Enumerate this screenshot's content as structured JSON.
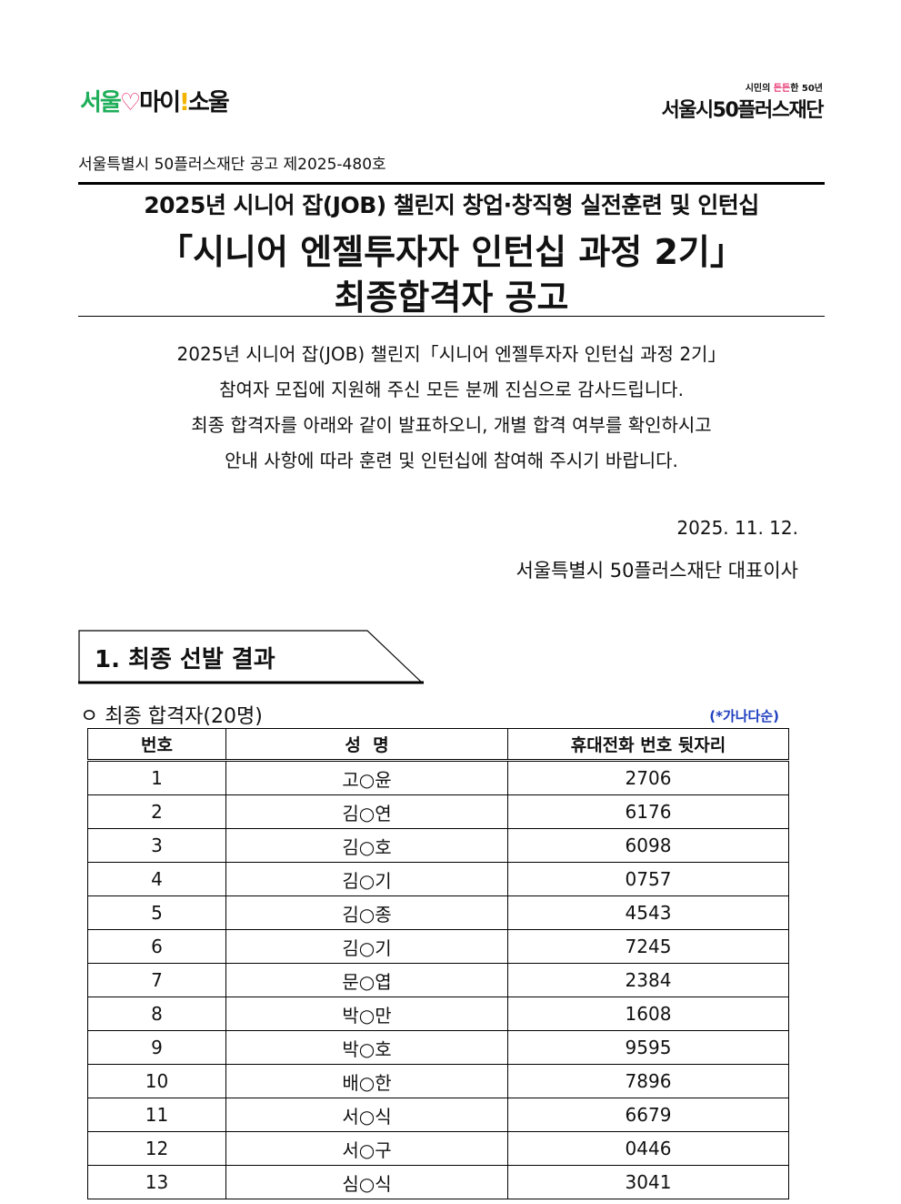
{
  "header": {
    "logo_left": [
      "서울",
      "♡",
      "마이",
      "!",
      "소울"
    ],
    "logo_right_tag": [
      "시민의 ",
      "든든",
      "한 50년"
    ],
    "logo_right_name": "서울시50플러스재단"
  },
  "notice_number": "서울특별시 50플러스재단 공고 제2025-480호",
  "title": {
    "line1": "2025년 시니어 잡(JOB) 챌린지 창업·창직형 실전훈련 및 인턴십",
    "line2": "「시니어 엔젤투자자 인턴십 과정 2기」",
    "line3": "최종합격자 공고"
  },
  "body": [
    "2025년 시니어 잡(JOB) 챌린지「시니어 엔젤투자자 인턴십 과정 2기」",
    "참여자 모집에 지원해 주신 모든 분께 진심으로 감사드립니다.",
    "최종 합격자를 아래와 같이 발표하오니, 개별 합격 여부를 확인하시고",
    "안내 사항에 따라 훈련 및 인턴십에 참여해 주시기 바랍니다."
  ],
  "date": "2025. 11. 12.",
  "signer": "서울특별시 50플러스재단 대표이사",
  "section": {
    "title": "1. 최종 선발 결과",
    "subheading": "ㅇ 최종 합격자(20명)",
    "order_note": "(*가나다순)"
  },
  "table": {
    "headers": [
      "번호",
      "성  명",
      "휴대전화 번호 뒷자리"
    ],
    "rows": [
      [
        "1",
        "고○윤",
        "2706"
      ],
      [
        "2",
        "김○연",
        "6176"
      ],
      [
        "3",
        "김○호",
        "6098"
      ],
      [
        "4",
        "김○기",
        "0757"
      ],
      [
        "5",
        "김○종",
        "4543"
      ],
      [
        "6",
        "김○기",
        "7245"
      ],
      [
        "7",
        "문○엽",
        "2384"
      ],
      [
        "8",
        "박○만",
        "1608"
      ],
      [
        "9",
        "박○호",
        "9595"
      ],
      [
        "10",
        "배○한",
        "7896"
      ],
      [
        "11",
        "서○식",
        "6679"
      ],
      [
        "12",
        "서○구",
        "0446"
      ],
      [
        "13",
        "심○식",
        "3041"
      ]
    ]
  }
}
